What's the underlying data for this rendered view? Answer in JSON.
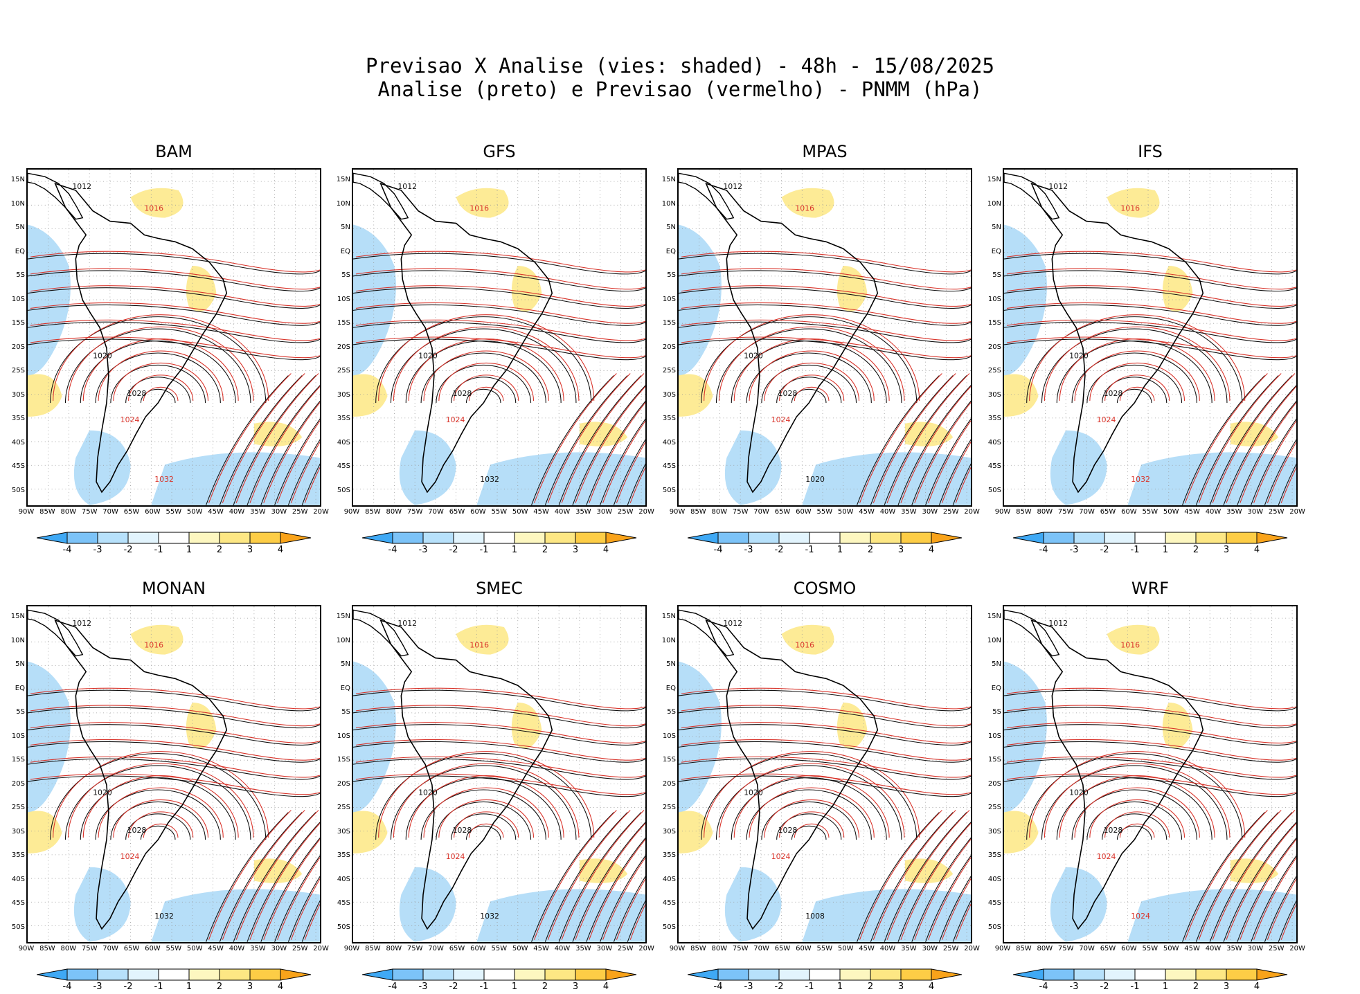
{
  "header": {
    "line1": "Previsao X Analise (vies: shaded) - 48h - 15/08/2025",
    "line2": "Analise (preto) e Previsao (vermelho) - PNMM (hPa)"
  },
  "lat_labels": [
    "15N",
    "10N",
    "5N",
    "EQ",
    "5S",
    "10S",
    "15S",
    "20S",
    "25S",
    "30S",
    "35S",
    "40S",
    "45S",
    "50S"
  ],
  "lon_labels": [
    "90W",
    "85W",
    "80W",
    "75W",
    "70W",
    "65W",
    "60W",
    "55W",
    "50W",
    "45W",
    "40W",
    "35W",
    "30W",
    "25W",
    "20W"
  ],
  "colorbar": {
    "colors": [
      "#3fa9f5",
      "#7cc3f8",
      "#b7e1fb",
      "#e2f4fd",
      "#ffffff",
      "#fdf7c0",
      "#fde784",
      "#fdcd46",
      "#f9a31a"
    ],
    "labels": [
      "-4",
      "-3",
      "-2",
      "-1",
      "1",
      "2",
      "3",
      "4"
    ]
  },
  "panels": [
    {
      "name": "BAM",
      "isobars": [
        {
          "t": "1012",
          "c": "k"
        },
        {
          "t": "1016",
          "c": "r"
        },
        {
          "t": "1020",
          "c": "k"
        },
        {
          "t": "1024",
          "c": "r"
        },
        {
          "t": "1028",
          "c": "k"
        },
        {
          "t": "1032",
          "c": "r"
        }
      ]
    },
    {
      "name": "GFS",
      "isobars": [
        {
          "t": "1012",
          "c": "k"
        },
        {
          "t": "1016",
          "c": "r"
        },
        {
          "t": "1020",
          "c": "k"
        },
        {
          "t": "1024",
          "c": "r"
        },
        {
          "t": "1028",
          "c": "k"
        },
        {
          "t": "1032",
          "c": "k"
        }
      ]
    },
    {
      "name": "MPAS",
      "isobars": [
        {
          "t": "1012",
          "c": "k"
        },
        {
          "t": "1016",
          "c": "r"
        },
        {
          "t": "1020",
          "c": "k"
        },
        {
          "t": "1024",
          "c": "r"
        },
        {
          "t": "1028",
          "c": "k"
        },
        {
          "t": "1020",
          "c": "k"
        }
      ]
    },
    {
      "name": "IFS",
      "isobars": [
        {
          "t": "1012",
          "c": "k"
        },
        {
          "t": "1016",
          "c": "r"
        },
        {
          "t": "1020",
          "c": "k"
        },
        {
          "t": "1024",
          "c": "r"
        },
        {
          "t": "1028",
          "c": "k"
        },
        {
          "t": "1032",
          "c": "r"
        }
      ]
    },
    {
      "name": "MONAN",
      "isobars": [
        {
          "t": "1012",
          "c": "k"
        },
        {
          "t": "1016",
          "c": "r"
        },
        {
          "t": "1020",
          "c": "k"
        },
        {
          "t": "1024",
          "c": "r"
        },
        {
          "t": "1028",
          "c": "k"
        },
        {
          "t": "1032",
          "c": "k"
        }
      ]
    },
    {
      "name": "SMEC",
      "isobars": [
        {
          "t": "1012",
          "c": "k"
        },
        {
          "t": "1016",
          "c": "r"
        },
        {
          "t": "1020",
          "c": "k"
        },
        {
          "t": "1024",
          "c": "r"
        },
        {
          "t": "1028",
          "c": "k"
        },
        {
          "t": "1032",
          "c": "k"
        }
      ]
    },
    {
      "name": "COSMO",
      "isobars": [
        {
          "t": "1012",
          "c": "k"
        },
        {
          "t": "1016",
          "c": "r"
        },
        {
          "t": "1020",
          "c": "k"
        },
        {
          "t": "1024",
          "c": "r"
        },
        {
          "t": "1028",
          "c": "k"
        },
        {
          "t": "1008",
          "c": "k"
        }
      ]
    },
    {
      "name": "WRF",
      "isobars": [
        {
          "t": "1012",
          "c": "k"
        },
        {
          "t": "1016",
          "c": "r"
        },
        {
          "t": "1020",
          "c": "k"
        },
        {
          "t": "1024",
          "c": "r"
        },
        {
          "t": "1028",
          "c": "k"
        },
        {
          "t": "1024",
          "c": "r"
        }
      ]
    }
  ]
}
